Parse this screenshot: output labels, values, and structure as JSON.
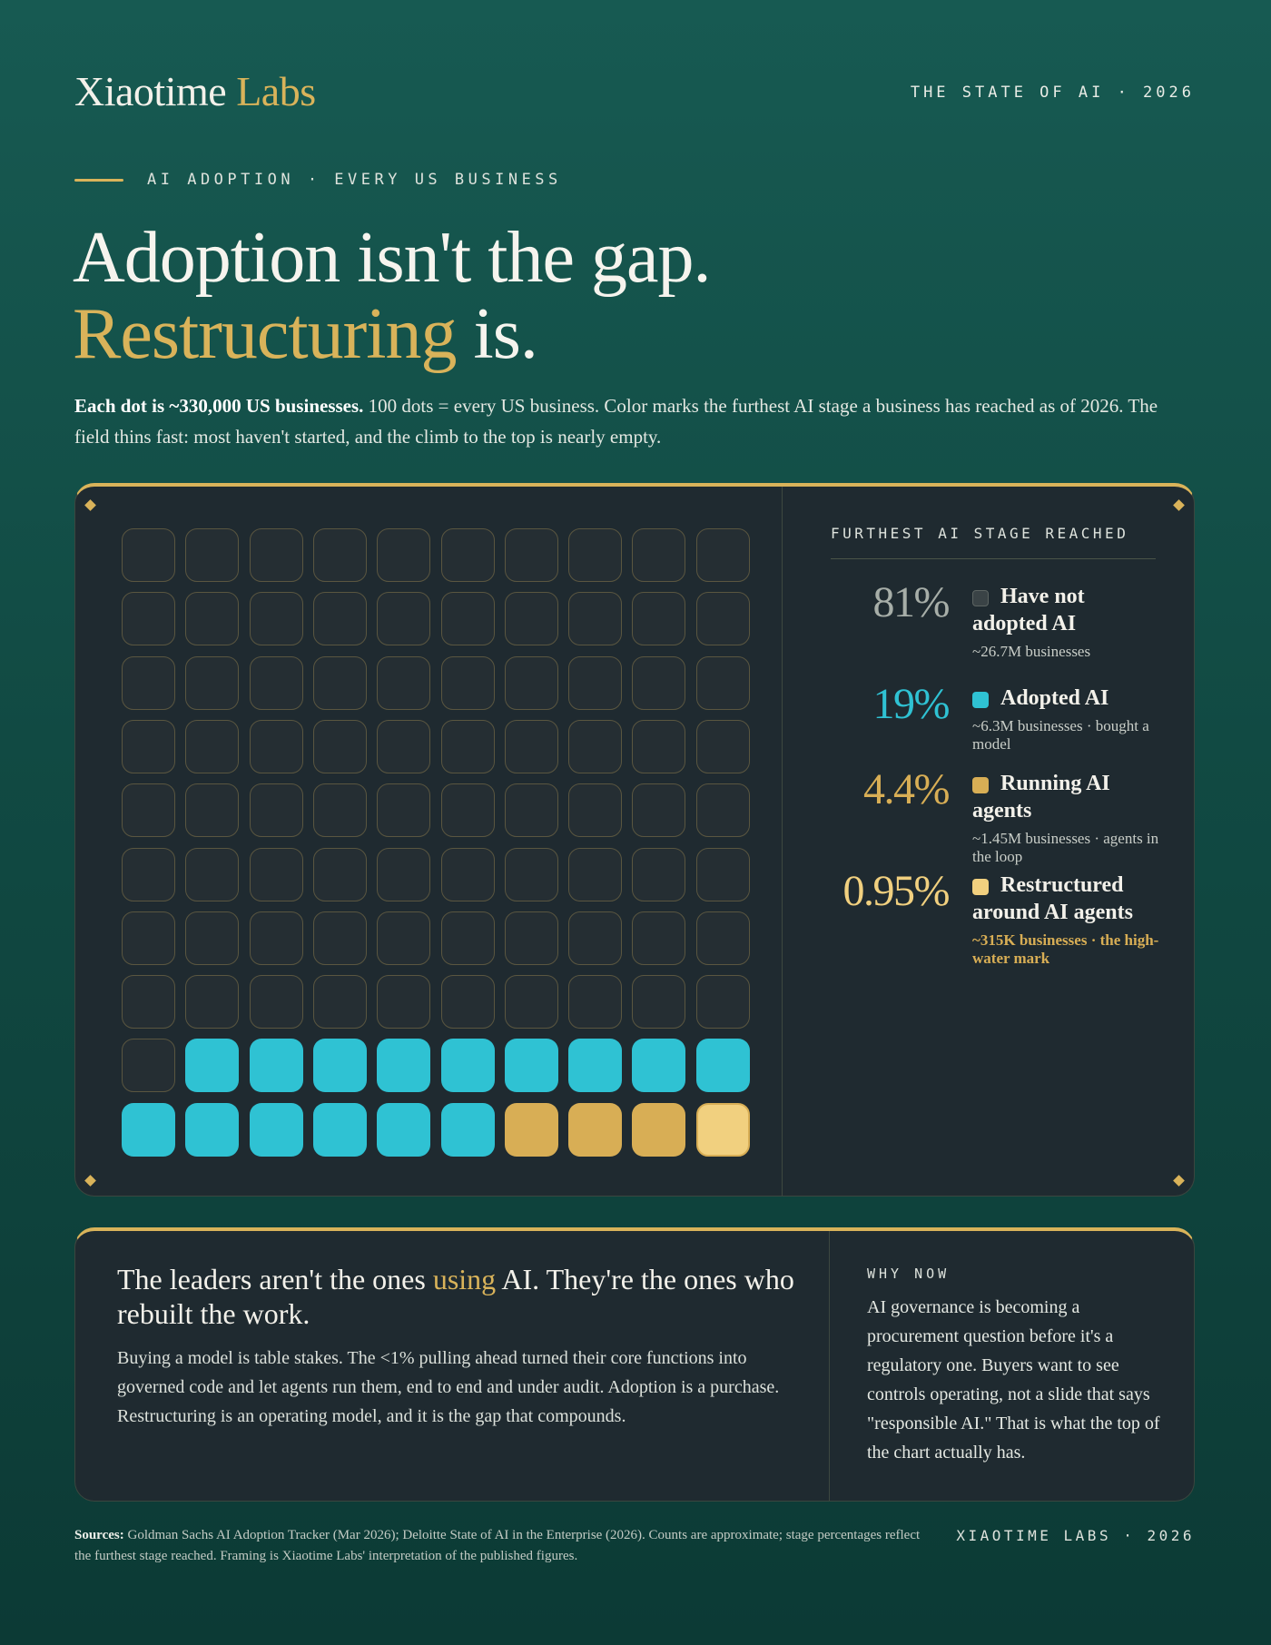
{
  "header": {
    "brand_main": "Xiaotime",
    "brand_accent": "Labs",
    "edition": "THE STATE OF AI · 2026"
  },
  "kicker": "AI ADOPTION · EVERY US BUSINESS",
  "headline": {
    "line1": "Adoption isn't the gap.",
    "line2_accent": "Restructuring",
    "line2_rest": "is."
  },
  "intro": {
    "bold": "Each dot is ~330,000 US businesses.",
    "rest": "100 dots = every US business. Color marks the furthest AI stage a business has reached as of 2026. The field thins fast: most haven't started, and the climb to the top is nearly empty."
  },
  "colors": {
    "none": "#252e33",
    "none_border": "#5a5640",
    "adopted": "#2fc2d3",
    "agents": "#d8ae55",
    "restructured": "#f1d07f",
    "pct_none": "#a7aea8"
  },
  "chart_data": {
    "type": "waffle",
    "grid": [
      10,
      10
    ],
    "unit": "~330,000 US businesses per dot",
    "stages": [
      {
        "key": "none",
        "name": "Have not adopted AI",
        "percent": "81%",
        "dots": 81,
        "sub": "~26.7M businesses"
      },
      {
        "key": "adopted",
        "name": "Adopted AI",
        "percent": "19%",
        "dots": 15,
        "sub": "~6.3M businesses · bought a model"
      },
      {
        "key": "agents",
        "name": "Running AI agents",
        "percent": "4.4%",
        "dots": 3,
        "sub": "~1.45M businesses · agents in the loop"
      },
      {
        "key": "restructured",
        "name": "Restructured around AI agents",
        "percent": "0.95%",
        "dots": 1,
        "sub": "~315K businesses · the high-water mark"
      }
    ]
  },
  "legend": {
    "title": "FURTHEST AI STAGE REACHED"
  },
  "insight": {
    "lead_pre": "The leaders aren't the ones",
    "lead_accent": "using",
    "lead_post": "AI. They're the ones who rebuilt the work.",
    "body": "Buying a model is table stakes. The <1% pulling ahead turned their core functions into governed code and let agents run them, end to end and under audit. Adoption is a purchase. Restructuring is an operating model, and it is the gap that compounds.",
    "why_title": "WHY NOW",
    "why_body": "AI governance is becoming a procurement question before it's a regulatory one. Buyers want to see controls operating, not a slide that says \"responsible AI.\" That is what the top of the chart actually has."
  },
  "footer": {
    "sources_label": "Sources:",
    "sources_text": "Goldman Sachs AI Adoption Tracker (Mar 2026); Deloitte State of AI in the Enterprise (2026). Counts are approximate; stage percentages reflect the furthest stage reached. Framing is Xiaotime Labs' interpretation of the published figures.",
    "brand": "XIAOTIME LABS · 2026"
  }
}
